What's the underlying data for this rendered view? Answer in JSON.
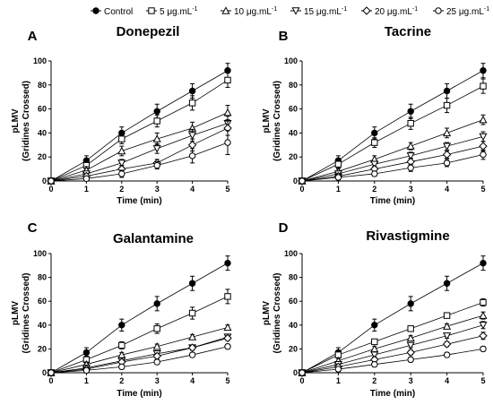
{
  "legend": {
    "entries": [
      {
        "label": "Control",
        "marker": "filled-circle"
      },
      {
        "label": "5 μg.mL",
        "sup": "-1",
        "marker": "open-square"
      },
      {
        "label": "10 μg.mL",
        "sup": "-1",
        "marker": "open-triangle-up"
      },
      {
        "label": "15 μg.mL",
        "sup": "-1",
        "marker": "open-triangle-down"
      },
      {
        "label": "20 μg.mL",
        "sup": "-1",
        "marker": "open-diamond"
      },
      {
        "label": "25 μg.mL",
        "sup": "-1",
        "marker": "open-circle"
      }
    ]
  },
  "chart_data": [
    {
      "type": "line",
      "panel_letter": "A",
      "title": "Donepezil",
      "xlabel": "Time (min)",
      "ylabel_lines": [
        "pLMV",
        "(Gridines Crossed)"
      ],
      "x": [
        0,
        1,
        2,
        3,
        4,
        5
      ],
      "xlim": [
        0,
        5
      ],
      "ylim": [
        0,
        100
      ],
      "xticks": [
        "0",
        "1",
        "2",
        "3",
        "4",
        "5"
      ],
      "yticks": [
        "0",
        "20",
        "40",
        "60",
        "80",
        "100"
      ],
      "series": [
        {
          "name": "Control",
          "values": [
            0,
            17,
            40,
            58,
            75,
            92
          ],
          "err": [
            0,
            4,
            5,
            6,
            6,
            6
          ]
        },
        {
          "name": "5 μg.mL-1",
          "values": [
            0,
            13,
            35,
            50,
            65,
            84
          ],
          "err": [
            0,
            3,
            4,
            5,
            6,
            6
          ]
        },
        {
          "name": "10 μg.mL-1",
          "values": [
            0,
            9,
            25,
            35,
            44,
            57
          ],
          "err": [
            0,
            3,
            4,
            5,
            5,
            6
          ]
        },
        {
          "name": "15 μg.mL-1",
          "values": [
            0,
            6,
            15,
            27,
            38,
            48
          ],
          "err": [
            0,
            2,
            3,
            4,
            5,
            6
          ]
        },
        {
          "name": "20 μg.mL-1",
          "values": [
            0,
            4,
            10,
            15,
            30,
            44
          ],
          "err": [
            0,
            2,
            3,
            3,
            5,
            6
          ]
        },
        {
          "name": "25 μg.mL-1",
          "values": [
            0,
            2,
            6,
            13,
            21,
            32
          ],
          "err": [
            0,
            2,
            3,
            3,
            6,
            10
          ]
        }
      ]
    },
    {
      "type": "line",
      "panel_letter": "B",
      "title": "Tacrine",
      "xlabel": "Time (min)",
      "ylabel_lines": [
        "pLMV",
        "(Gridines Crossed)"
      ],
      "x": [
        0,
        1,
        2,
        3,
        4,
        5
      ],
      "xlim": [
        0,
        5
      ],
      "ylim": [
        0,
        100
      ],
      "xticks": [
        "0",
        "1",
        "2",
        "3",
        "4",
        "5"
      ],
      "yticks": [
        "0",
        "20",
        "40",
        "60",
        "80",
        "100"
      ],
      "series": [
        {
          "name": "Control",
          "values": [
            0,
            17,
            40,
            58,
            75,
            92
          ],
          "err": [
            0,
            4,
            5,
            6,
            6,
            6
          ]
        },
        {
          "name": "5 μg.mL-1",
          "values": [
            0,
            14,
            32,
            48,
            63,
            79
          ],
          "err": [
            0,
            3,
            4,
            5,
            6,
            6
          ]
        },
        {
          "name": "10 μg.mL-1",
          "values": [
            0,
            8,
            18,
            29,
            40,
            51
          ],
          "err": [
            0,
            2,
            3,
            3,
            4,
            4
          ]
        },
        {
          "name": "15 μg.mL-1",
          "values": [
            0,
            6,
            14,
            21,
            29,
            37
          ],
          "err": [
            0,
            2,
            2,
            3,
            3,
            4
          ]
        },
        {
          "name": "20 μg.mL-1",
          "values": [
            0,
            4,
            10,
            16,
            22,
            29
          ],
          "err": [
            0,
            2,
            2,
            3,
            3,
            4
          ]
        },
        {
          "name": "25 μg.mL-1",
          "values": [
            0,
            3,
            6,
            11,
            15,
            22
          ],
          "err": [
            0,
            2,
            2,
            3,
            3,
            4
          ]
        }
      ]
    },
    {
      "type": "line",
      "panel_letter": "C",
      "title": "Galantamine",
      "xlabel": "Time (min)",
      "ylabel_lines": [
        "pLMV",
        "(Gridines Crossed)"
      ],
      "x": [
        0,
        1,
        2,
        3,
        4,
        5
      ],
      "xlim": [
        0,
        5
      ],
      "ylim": [
        0,
        100
      ],
      "xticks": [
        "0",
        "1",
        "2",
        "3",
        "4",
        "5"
      ],
      "yticks": [
        "0",
        "20",
        "40",
        "60",
        "80",
        "100"
      ],
      "series": [
        {
          "name": "Control",
          "values": [
            0,
            17,
            40,
            58,
            75,
            92
          ],
          "err": [
            0,
            4,
            5,
            6,
            6,
            6
          ]
        },
        {
          "name": "5 μg.mL-1",
          "values": [
            0,
            11,
            23,
            37,
            50,
            64
          ],
          "err": [
            0,
            3,
            3,
            4,
            5,
            6
          ]
        },
        {
          "name": "10 μg.mL-1",
          "values": [
            0,
            7,
            15,
            22,
            30,
            38
          ],
          "err": [
            0,
            2,
            2,
            2,
            2,
            2
          ]
        },
        {
          "name": "15 μg.mL-1",
          "values": [
            0,
            4,
            10,
            16,
            21,
            30
          ],
          "err": [
            0,
            2,
            2,
            2,
            2,
            2
          ]
        },
        {
          "name": "20 μg.mL-1",
          "values": [
            0,
            3,
            9,
            14,
            21,
            29
          ],
          "err": [
            0,
            2,
            2,
            2,
            2,
            2
          ]
        },
        {
          "name": "25 μg.mL-1",
          "values": [
            0,
            2,
            5,
            9,
            15,
            22
          ],
          "err": [
            0,
            2,
            2,
            2,
            2,
            2
          ]
        }
      ]
    },
    {
      "type": "line",
      "panel_letter": "D",
      "title": "Rivastigmine",
      "xlabel": "Time (min)",
      "ylabel_lines": [
        "pLMV",
        "(Gridines Crossed)"
      ],
      "x": [
        0,
        1,
        2,
        3,
        4,
        5
      ],
      "xlim": [
        0,
        5
      ],
      "ylim": [
        0,
        100
      ],
      "xticks": [
        "0",
        "1",
        "2",
        "3",
        "4",
        "5"
      ],
      "yticks": [
        "0",
        "20",
        "40",
        "60",
        "80",
        "100"
      ],
      "series": [
        {
          "name": "Control",
          "values": [
            0,
            17,
            40,
            58,
            75,
            92
          ],
          "err": [
            0,
            4,
            5,
            6,
            6,
            6
          ]
        },
        {
          "name": "5 μg.mL-1",
          "values": [
            0,
            15,
            26,
            37,
            48,
            59
          ],
          "err": [
            0,
            2,
            2,
            2,
            2,
            3
          ]
        },
        {
          "name": "10 μg.mL-1",
          "values": [
            0,
            10,
            20,
            29,
            39,
            48
          ],
          "err": [
            0,
            2,
            2,
            2,
            2,
            3
          ]
        },
        {
          "name": "15 μg.mL-1",
          "values": [
            0,
            7,
            15,
            23,
            31,
            40
          ],
          "err": [
            0,
            2,
            2,
            2,
            2,
            3
          ]
        },
        {
          "name": "20 μg.mL-1",
          "values": [
            0,
            5,
            11,
            17,
            24,
            31
          ],
          "err": [
            0,
            2,
            2,
            2,
            2,
            3
          ]
        },
        {
          "name": "25 μg.mL-1",
          "values": [
            0,
            3,
            7,
            11,
            15,
            20
          ],
          "err": [
            0,
            2,
            2,
            2,
            2,
            2
          ]
        }
      ]
    }
  ]
}
